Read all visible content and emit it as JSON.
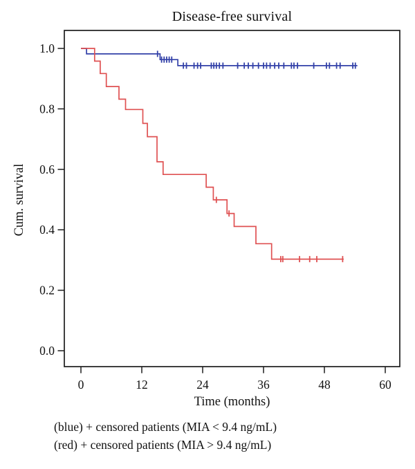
{
  "figure": {
    "title": "Disease-free survival",
    "x_axis_label": "Time (months)",
    "y_axis_label": "Cum. survival",
    "caption_line1": "(blue) + censored patients (MIA < 9.4 ng/mL)",
    "caption_line2": "(red) + censored patients (MIA > 9.4 ng/mL)"
  },
  "colors": {
    "blue": "#3240a8",
    "red": "#df5152",
    "axis": "#1c1c1c",
    "text": "#111111"
  },
  "chart_data": {
    "type": "line",
    "subtype": "kaplan-meier-step",
    "title": "Disease-free survival",
    "xlabel": "Time (months)",
    "ylabel": "Cum. survival",
    "xlim": [
      0,
      63
    ],
    "ylim": [
      -0.05,
      1.07
    ],
    "x_ticks": [
      0,
      12,
      24,
      36,
      48,
      60
    ],
    "y_ticks": [
      1.0,
      0.8,
      0.6,
      0.4,
      0.2,
      0.0
    ],
    "y_tick_labels": [
      "1.0",
      "0.8",
      "0.6",
      "0.4",
      "0.2",
      "0.0"
    ],
    "grid": false,
    "legend_position": "caption-below-plot",
    "series": [
      {
        "name": "MIA < 9.4 ng/mL",
        "color": "blue",
        "steps": [
          [
            0,
            1.0
          ],
          [
            1.1,
            0.982
          ],
          [
            15.6,
            0.963
          ],
          [
            19.1,
            0.943
          ]
        ],
        "end_time": 54.5,
        "censor_marks": [
          [
            15.1,
            0.982
          ],
          [
            15.9,
            0.963
          ],
          [
            16.4,
            0.963
          ],
          [
            16.9,
            0.963
          ],
          [
            17.4,
            0.963
          ],
          [
            17.9,
            0.963
          ],
          [
            20.2,
            0.943
          ],
          [
            20.8,
            0.943
          ],
          [
            22.3,
            0.943
          ],
          [
            23.0,
            0.943
          ],
          [
            23.6,
            0.943
          ],
          [
            25.7,
            0.943
          ],
          [
            26.2,
            0.943
          ],
          [
            26.7,
            0.943
          ],
          [
            27.3,
            0.943
          ],
          [
            28.0,
            0.943
          ],
          [
            30.9,
            0.943
          ],
          [
            32.2,
            0.943
          ],
          [
            33.0,
            0.943
          ],
          [
            33.9,
            0.943
          ],
          [
            35.0,
            0.943
          ],
          [
            36.0,
            0.943
          ],
          [
            36.6,
            0.943
          ],
          [
            37.3,
            0.943
          ],
          [
            38.2,
            0.943
          ],
          [
            39.0,
            0.943
          ],
          [
            40.0,
            0.943
          ],
          [
            41.5,
            0.943
          ],
          [
            42.0,
            0.943
          ],
          [
            42.7,
            0.943
          ],
          [
            45.9,
            0.943
          ],
          [
            48.4,
            0.943
          ],
          [
            49.0,
            0.943
          ],
          [
            50.4,
            0.943
          ],
          [
            51.1,
            0.943
          ],
          [
            53.6,
            0.943
          ],
          [
            54.1,
            0.943
          ]
        ]
      },
      {
        "name": "MIA > 9.4 ng/mL",
        "color": "red",
        "steps": [
          [
            0,
            1.0
          ],
          [
            2.7,
            0.958
          ],
          [
            3.8,
            0.917
          ],
          [
            5.0,
            0.874
          ],
          [
            7.5,
            0.832
          ],
          [
            8.8,
            0.798
          ],
          [
            12.2,
            0.752
          ],
          [
            13.1,
            0.708
          ],
          [
            15.0,
            0.625
          ],
          [
            16.2,
            0.583
          ],
          [
            24.7,
            0.541
          ],
          [
            26.1,
            0.499
          ],
          [
            28.8,
            0.454
          ],
          [
            30.2,
            0.411
          ],
          [
            34.5,
            0.354
          ],
          [
            37.6,
            0.303
          ]
        ],
        "end_time": 51.8,
        "censor_marks": [
          [
            26.7,
            0.499
          ],
          [
            29.2,
            0.454
          ],
          [
            39.4,
            0.303
          ],
          [
            39.8,
            0.303
          ],
          [
            43.1,
            0.303
          ],
          [
            45.1,
            0.303
          ],
          [
            46.5,
            0.303
          ],
          [
            51.6,
            0.303
          ]
        ]
      }
    ]
  }
}
